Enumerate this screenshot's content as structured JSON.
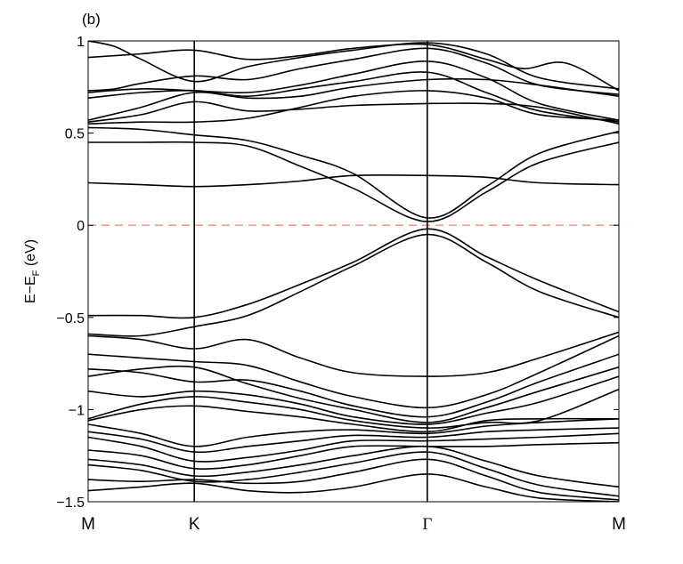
{
  "chart_data": {
    "type": "line",
    "panel_label": "(b)",
    "ylabel": "E−E",
    "ylabel_sub": "F",
    "ylabel_unit": " (eV)",
    "ylim": [
      -1.5,
      1
    ],
    "xlim": [
      0,
      1
    ],
    "yticks": [
      {
        "value": 1,
        "label": "1"
      },
      {
        "value": 0.5,
        "label": "0.5"
      },
      {
        "value": 0,
        "label": "0"
      },
      {
        "value": -0.5,
        "label": "−0.5"
      },
      {
        "value": -1,
        "label": "−1"
      },
      {
        "value": -1.5,
        "label": "−1.5"
      }
    ],
    "kpoints": [
      {
        "label": "M",
        "x": 0
      },
      {
        "label": "K",
        "x": 0.2
      },
      {
        "label": "Γ",
        "x": 0.639
      },
      {
        "label": "M",
        "x": 1
      }
    ],
    "fermi_level": {
      "y": 0,
      "color": "#ef8a80",
      "style": "dashed"
    },
    "line_color": "#000000",
    "bands": [
      {
        "points": [
          [
            0,
            1.0
          ],
          [
            0.05,
            0.97
          ],
          [
            0.1,
            0.9
          ],
          [
            0.2,
            0.78
          ],
          [
            0.3,
            0.86
          ],
          [
            0.4,
            0.91
          ],
          [
            0.5,
            0.95
          ],
          [
            0.639,
            0.99
          ],
          [
            0.75,
            0.93
          ],
          [
            0.85,
            0.8
          ],
          [
            1,
            0.74
          ]
        ]
      },
      {
        "points": [
          [
            0,
            0.91
          ],
          [
            0.1,
            0.93
          ],
          [
            0.2,
            0.95
          ],
          [
            0.3,
            0.9
          ],
          [
            0.4,
            0.92
          ],
          [
            0.5,
            0.96
          ],
          [
            0.639,
            0.98
          ],
          [
            0.75,
            0.9
          ],
          [
            0.82,
            0.85
          ],
          [
            0.9,
            0.88
          ],
          [
            1,
            0.73
          ]
        ]
      },
      {
        "points": [
          [
            0,
            0.73
          ],
          [
            0.05,
            0.74
          ],
          [
            0.1,
            0.77
          ],
          [
            0.2,
            0.81
          ],
          [
            0.3,
            0.79
          ],
          [
            0.4,
            0.85
          ],
          [
            0.5,
            0.9
          ],
          [
            0.639,
            0.96
          ],
          [
            0.75,
            0.88
          ],
          [
            0.85,
            0.76
          ],
          [
            1,
            0.71
          ]
        ]
      },
      {
        "points": [
          [
            0,
            0.72
          ],
          [
            0.1,
            0.74
          ],
          [
            0.2,
            0.73
          ],
          [
            0.3,
            0.72
          ],
          [
            0.4,
            0.76
          ],
          [
            0.5,
            0.82
          ],
          [
            0.639,
            0.89
          ],
          [
            0.75,
            0.8
          ],
          [
            0.85,
            0.66
          ],
          [
            1,
            0.57
          ]
        ]
      },
      {
        "points": [
          [
            0,
            0.69
          ],
          [
            0.1,
            0.72
          ],
          [
            0.2,
            0.73
          ],
          [
            0.3,
            0.7
          ],
          [
            0.4,
            0.74
          ],
          [
            0.5,
            0.78
          ],
          [
            0.639,
            0.83
          ],
          [
            0.75,
            0.72
          ],
          [
            0.85,
            0.62
          ],
          [
            1,
            0.56
          ]
        ]
      },
      {
        "points": [
          [
            0,
            0.57
          ],
          [
            0.1,
            0.64
          ],
          [
            0.2,
            0.72
          ],
          [
            0.3,
            0.69
          ],
          [
            0.4,
            0.7
          ],
          [
            0.5,
            0.75
          ],
          [
            0.639,
            0.79
          ],
          [
            0.75,
            0.79
          ],
          [
            0.85,
            0.76
          ],
          [
            1,
            0.7
          ]
        ]
      },
      {
        "points": [
          [
            0,
            0.56
          ],
          [
            0.1,
            0.6
          ],
          [
            0.2,
            0.67
          ],
          [
            0.3,
            0.62
          ],
          [
            0.4,
            0.63
          ],
          [
            0.5,
            0.65
          ],
          [
            0.639,
            0.66
          ],
          [
            0.75,
            0.66
          ],
          [
            0.85,
            0.64
          ],
          [
            1,
            0.55
          ]
        ]
      },
      {
        "points": [
          [
            0,
            0.55
          ],
          [
            0.1,
            0.56
          ],
          [
            0.2,
            0.56
          ],
          [
            0.3,
            0.58
          ],
          [
            0.4,
            0.64
          ],
          [
            0.5,
            0.7
          ],
          [
            0.639,
            0.73
          ],
          [
            0.75,
            0.69
          ],
          [
            0.85,
            0.6
          ],
          [
            1,
            0.57
          ]
        ]
      },
      {
        "points": [
          [
            0,
            0.53
          ],
          [
            0.1,
            0.52
          ],
          [
            0.2,
            0.49
          ],
          [
            0.3,
            0.46
          ],
          [
            0.4,
            0.38
          ],
          [
            0.5,
            0.28
          ],
          [
            0.639,
            0.04
          ],
          [
            0.75,
            0.21
          ],
          [
            0.85,
            0.39
          ],
          [
            1,
            0.51
          ]
        ]
      },
      {
        "points": [
          [
            0,
            0.45
          ],
          [
            0.1,
            0.45
          ],
          [
            0.2,
            0.45
          ],
          [
            0.3,
            0.43
          ],
          [
            0.4,
            0.32
          ],
          [
            0.5,
            0.2
          ],
          [
            0.639,
            0.02
          ],
          [
            0.75,
            0.18
          ],
          [
            0.85,
            0.34
          ],
          [
            1,
            0.45
          ]
        ]
      },
      {
        "points": [
          [
            0,
            0.23
          ],
          [
            0.1,
            0.22
          ],
          [
            0.2,
            0.21
          ],
          [
            0.3,
            0.22
          ],
          [
            0.4,
            0.24
          ],
          [
            0.5,
            0.27
          ],
          [
            0.639,
            0.27
          ],
          [
            0.75,
            0.26
          ],
          [
            0.85,
            0.23
          ],
          [
            1,
            0.22
          ]
        ]
      },
      {
        "points": [
          [
            0,
            -0.49
          ],
          [
            0.1,
            -0.49
          ],
          [
            0.2,
            -0.5
          ],
          [
            0.3,
            -0.43
          ],
          [
            0.4,
            -0.32
          ],
          [
            0.5,
            -0.2
          ],
          [
            0.639,
            -0.02
          ],
          [
            0.75,
            -0.17
          ],
          [
            0.85,
            -0.3
          ],
          [
            1,
            -0.47
          ]
        ]
      },
      {
        "points": [
          [
            0,
            -0.59
          ],
          [
            0.1,
            -0.6
          ],
          [
            0.2,
            -0.55
          ],
          [
            0.3,
            -0.49
          ],
          [
            0.4,
            -0.36
          ],
          [
            0.5,
            -0.22
          ],
          [
            0.639,
            -0.05
          ],
          [
            0.75,
            -0.2
          ],
          [
            0.85,
            -0.36
          ],
          [
            1,
            -0.5
          ]
        ]
      },
      {
        "points": [
          [
            0,
            -0.6
          ],
          [
            0.1,
            -0.62
          ],
          [
            0.2,
            -0.67
          ],
          [
            0.3,
            -0.62
          ],
          [
            0.4,
            -0.72
          ],
          [
            0.5,
            -0.8
          ],
          [
            0.639,
            -0.82
          ],
          [
            0.75,
            -0.8
          ],
          [
            0.85,
            -0.72
          ],
          [
            1,
            -0.58
          ]
        ]
      },
      {
        "points": [
          [
            0,
            -0.7
          ],
          [
            0.1,
            -0.72
          ],
          [
            0.2,
            -0.74
          ],
          [
            0.3,
            -0.76
          ],
          [
            0.4,
            -0.85
          ],
          [
            0.5,
            -0.93
          ],
          [
            0.639,
            -0.99
          ],
          [
            0.75,
            -0.92
          ],
          [
            0.85,
            -0.8
          ],
          [
            1,
            -0.6
          ]
        ]
      },
      {
        "points": [
          [
            0,
            -0.78
          ],
          [
            0.1,
            -0.8
          ],
          [
            0.2,
            -0.85
          ],
          [
            0.3,
            -0.84
          ],
          [
            0.4,
            -0.9
          ],
          [
            0.5,
            -0.98
          ],
          [
            0.639,
            -1.04
          ],
          [
            0.75,
            -0.96
          ],
          [
            0.85,
            -0.85
          ],
          [
            1,
            -0.7
          ]
        ]
      },
      {
        "points": [
          [
            0,
            -0.82
          ],
          [
            0.1,
            -0.78
          ],
          [
            0.2,
            -0.77
          ],
          [
            0.3,
            -0.86
          ],
          [
            0.4,
            -0.94
          ],
          [
            0.5,
            -1.0
          ],
          [
            0.639,
            -1.07
          ],
          [
            0.75,
            -0.99
          ],
          [
            0.85,
            -0.9
          ],
          [
            1,
            -0.77
          ]
        ]
      },
      {
        "points": [
          [
            0,
            -0.9
          ],
          [
            0.1,
            -0.93
          ],
          [
            0.2,
            -0.9
          ],
          [
            0.3,
            -0.92
          ],
          [
            0.4,
            -0.97
          ],
          [
            0.5,
            -1.04
          ],
          [
            0.639,
            -1.08
          ],
          [
            0.75,
            -1.02
          ],
          [
            0.85,
            -0.96
          ],
          [
            1,
            -0.82
          ]
        ]
      },
      {
        "points": [
          [
            0,
            -1.05
          ],
          [
            0.1,
            -0.97
          ],
          [
            0.2,
            -0.93
          ],
          [
            0.3,
            -0.96
          ],
          [
            0.4,
            -1.0
          ],
          [
            0.5,
            -1.06
          ],
          [
            0.639,
            -1.1
          ],
          [
            0.75,
            -1.07
          ],
          [
            0.85,
            -1.06
          ],
          [
            1,
            -0.89
          ]
        ]
      },
      {
        "points": [
          [
            0,
            -1.06
          ],
          [
            0.1,
            -1.0
          ],
          [
            0.2,
            -0.98
          ],
          [
            0.3,
            -1.01
          ],
          [
            0.4,
            -1.04
          ],
          [
            0.5,
            -1.08
          ],
          [
            0.639,
            -1.12
          ],
          [
            0.75,
            -1.06
          ],
          [
            0.85,
            -1.05
          ],
          [
            1,
            -1.05
          ]
        ]
      },
      {
        "points": [
          [
            0,
            -1.08
          ],
          [
            0.1,
            -1.13
          ],
          [
            0.2,
            -1.2
          ],
          [
            0.3,
            -1.15
          ],
          [
            0.4,
            -1.12
          ],
          [
            0.5,
            -1.11
          ],
          [
            0.639,
            -1.13
          ],
          [
            0.75,
            -1.09
          ],
          [
            0.85,
            -1.07
          ],
          [
            1,
            -1.05
          ]
        ]
      },
      {
        "points": [
          [
            0,
            -1.12
          ],
          [
            0.1,
            -1.16
          ],
          [
            0.2,
            -1.23
          ],
          [
            0.3,
            -1.2
          ],
          [
            0.4,
            -1.17
          ],
          [
            0.5,
            -1.14
          ],
          [
            0.639,
            -1.15
          ],
          [
            0.75,
            -1.12
          ],
          [
            0.85,
            -1.11
          ],
          [
            1,
            -1.1
          ]
        ]
      },
      {
        "points": [
          [
            0,
            -1.15
          ],
          [
            0.1,
            -1.2
          ],
          [
            0.2,
            -1.28
          ],
          [
            0.3,
            -1.26
          ],
          [
            0.4,
            -1.22
          ],
          [
            0.5,
            -1.17
          ],
          [
            0.639,
            -1.17
          ],
          [
            0.75,
            -1.16
          ],
          [
            0.85,
            -1.15
          ],
          [
            1,
            -1.13
          ]
        ]
      },
      {
        "points": [
          [
            0,
            -1.22
          ],
          [
            0.1,
            -1.25
          ],
          [
            0.2,
            -1.32
          ],
          [
            0.3,
            -1.3
          ],
          [
            0.4,
            -1.25
          ],
          [
            0.5,
            -1.2
          ],
          [
            0.639,
            -1.2
          ],
          [
            0.75,
            -1.2
          ],
          [
            0.85,
            -1.19
          ],
          [
            1,
            -1.18
          ]
        ]
      },
      {
        "points": [
          [
            0,
            -1.27
          ],
          [
            0.1,
            -1.3
          ],
          [
            0.2,
            -1.36
          ],
          [
            0.3,
            -1.34
          ],
          [
            0.4,
            -1.3
          ],
          [
            0.5,
            -1.25
          ],
          [
            0.639,
            -1.2
          ],
          [
            0.75,
            -1.28
          ],
          [
            0.85,
            -1.36
          ],
          [
            1,
            -1.42
          ]
        ]
      },
      {
        "points": [
          [
            0,
            -1.3
          ],
          [
            0.1,
            -1.33
          ],
          [
            0.2,
            -1.39
          ],
          [
            0.3,
            -1.38
          ],
          [
            0.4,
            -1.34
          ],
          [
            0.5,
            -1.29
          ],
          [
            0.639,
            -1.23
          ],
          [
            0.75,
            -1.32
          ],
          [
            0.85,
            -1.41
          ],
          [
            1,
            -1.47
          ]
        ]
      },
      {
        "points": [
          [
            0,
            -1.38
          ],
          [
            0.1,
            -1.39
          ],
          [
            0.2,
            -1.38
          ],
          [
            0.3,
            -1.4
          ],
          [
            0.4,
            -1.39
          ],
          [
            0.5,
            -1.34
          ],
          [
            0.639,
            -1.27
          ],
          [
            0.75,
            -1.36
          ],
          [
            0.85,
            -1.45
          ],
          [
            1,
            -1.49
          ]
        ]
      },
      {
        "points": [
          [
            0,
            -1.44
          ],
          [
            0.1,
            -1.42
          ],
          [
            0.2,
            -1.4
          ],
          [
            0.3,
            -1.44
          ],
          [
            0.4,
            -1.45
          ],
          [
            0.5,
            -1.42
          ],
          [
            0.639,
            -1.35
          ],
          [
            0.75,
            -1.42
          ],
          [
            0.85,
            -1.48
          ],
          [
            1,
            -1.5
          ]
        ]
      }
    ]
  }
}
